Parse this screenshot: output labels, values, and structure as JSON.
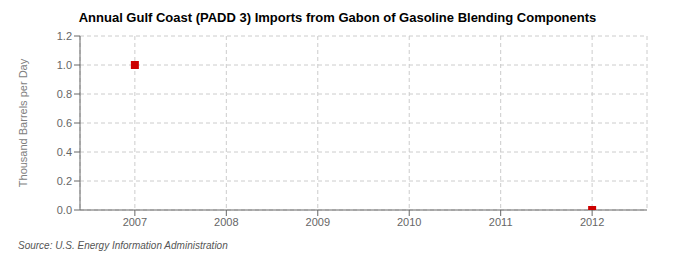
{
  "chart_data": {
    "type": "scatter",
    "title": "Annual Gulf Coast (PADD 3) Imports from Gabon of Gasoline Blending Components",
    "ylabel": "Thousand Barrels per Day",
    "source": "Source: U.S. Energy Information Administration",
    "x": [
      2007,
      2012
    ],
    "values": [
      1.0,
      0.0
    ],
    "color": "#cc0000",
    "marker": "square",
    "xlim": [
      2006.4,
      2012.6
    ],
    "ylim": [
      0.0,
      1.2
    ],
    "xticks": [
      2007,
      2008,
      2009,
      2010,
      2011,
      2012
    ],
    "yticks": [
      {
        "value": 0.0,
        "label": "0.0"
      },
      0.2,
      0.4,
      0.6,
      0.8,
      {
        "value": 1.0,
        "label": "1.0"
      },
      1.2
    ],
    "grid": true
  }
}
